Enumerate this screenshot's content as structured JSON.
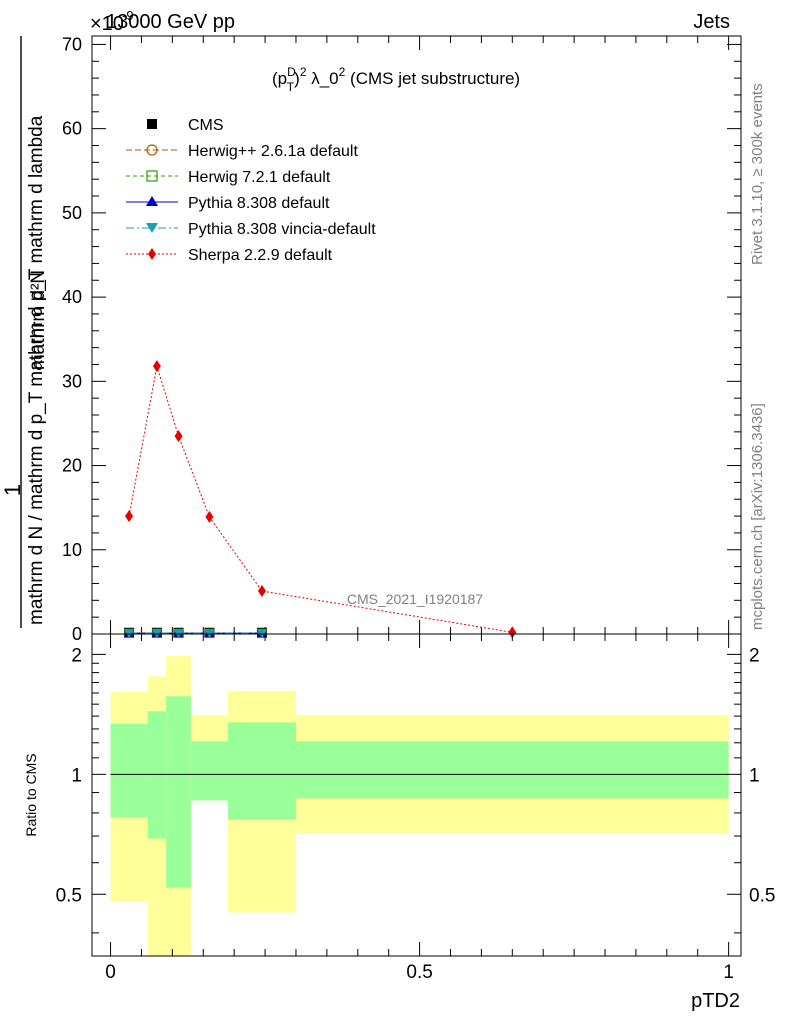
{
  "header": {
    "left_label": "13000 GeV pp",
    "exponent_label": "×10",
    "exponent_power": "-9",
    "right_label": "Jets"
  },
  "side_labels": {
    "rivet": "Rivet 3.1.10, ≥ 300k events",
    "mcplots": "mcplots.cern.ch [arXiv:1306.3436]"
  },
  "watermark": "CMS_2021_I1920187",
  "colors": {
    "cms": "#000000",
    "herwigpp": "#b35900",
    "herwig7": "#339900",
    "pythia": "#0000cc",
    "vincia": "#1a9fb0",
    "sherpa": "#e60000",
    "band_outer": "#ffff99",
    "band_inner": "#99ff99"
  },
  "chart_data": [
    {
      "id": "main",
      "type": "line",
      "title": "(p_T^D)^2 λ_0^2 (CMS jet substructure)",
      "title_parts": {
        "p": "(p",
        "sup1": "D",
        "sub1": "T",
        "close": ")",
        "sup2": "2",
        "lambda": " λ_0",
        "sup3": "2",
        "rest": " (CMS jet substructure)"
      },
      "ylabel_parts": {
        "numerator": "mathrm d²N",
        "denominator": "mathrm d N / mathrm d p_T mathrm d p_T mathrm d lambda",
        "one": "1"
      },
      "ylabel": "1 / (mathrm d N / mathrm d p_T) · mathrm d²N / (mathrm d p_T mathrm d lambda)",
      "xlim": [
        -0.03,
        1.02
      ],
      "ylim": [
        0,
        71
      ],
      "y_scale_note": "×10^-9",
      "yticks": [
        0,
        10,
        20,
        30,
        40,
        50,
        60,
        70
      ],
      "ytick_labels": [
        "0",
        "10",
        "20",
        "30",
        "40",
        "50",
        "60",
        "70"
      ],
      "legend_position": "top-left",
      "legend": [
        "CMS",
        "Herwig++ 2.6.1a default",
        "Herwig 7.2.1 default",
        "Pythia 8.308 default",
        "Pythia 8.308 vincia-default",
        "Sherpa 2.2.9 default"
      ],
      "series": [
        {
          "name": "CMS",
          "marker": "square",
          "x": [
            0.03,
            0.075,
            0.11,
            0.16,
            0.245
          ],
          "y": [
            0.15,
            0.15,
            0.15,
            0.15,
            0.15
          ]
        },
        {
          "name": "Herwig++ 2.6.1a default",
          "marker": "circle-open",
          "dash": "6,3",
          "x": [
            0.03,
            0.075,
            0.11,
            0.16,
            0.245
          ],
          "y": [
            0.1,
            0.1,
            0.1,
            0.1,
            0.1
          ]
        },
        {
          "name": "Herwig 7.2.1 default",
          "marker": "square-open",
          "dash": "4,3",
          "x": [
            0.03,
            0.075,
            0.11,
            0.16,
            0.245
          ],
          "y": [
            0.1,
            0.1,
            0.1,
            0.1,
            0.1
          ]
        },
        {
          "name": "Pythia 8.308 default",
          "marker": "triangle-up",
          "dash": "",
          "x": [
            0.03,
            0.075,
            0.11,
            0.16,
            0.245
          ],
          "y": [
            0.1,
            0.1,
            0.1,
            0.1,
            0.1
          ]
        },
        {
          "name": "Pythia 8.308 vincia-default",
          "marker": "triangle-down",
          "dash": "8,3,2,3",
          "x": [
            0.03,
            0.075,
            0.11,
            0.16,
            0.245
          ],
          "y": [
            0.1,
            0.1,
            0.1,
            0.1,
            0.1
          ]
        },
        {
          "name": "Sherpa 2.2.9 default",
          "marker": "diamond",
          "dash": "2,2",
          "x": [
            0.03,
            0.075,
            0.11,
            0.16,
            0.245,
            0.65
          ],
          "y": [
            14.0,
            31.8,
            23.5,
            13.9,
            5.1,
            0.2
          ]
        }
      ]
    },
    {
      "id": "ratio",
      "type": "area",
      "ylabel": "Ratio to CMS",
      "xlabel": "pTD2",
      "xlim": [
        -0.03,
        1.02
      ],
      "ylim": [
        0.35,
        2.25
      ],
      "yticks": [
        0.5,
        1,
        2
      ],
      "ytick_labels": [
        "0.5",
        "1",
        "2"
      ],
      "xticks": [
        0,
        0.5,
        1
      ],
      "xtick_labels": [
        "0",
        "0.5",
        "1"
      ],
      "reference_line": 1,
      "bands": [
        {
          "x0": 0.0,
          "x1": 0.06,
          "outer": [
            0.48,
            1.61
          ],
          "inner": [
            0.78,
            1.34
          ]
        },
        {
          "x0": 0.06,
          "x1": 0.09,
          "outer": [
            0.35,
            1.76
          ],
          "inner": [
            0.69,
            1.44
          ]
        },
        {
          "x0": 0.09,
          "x1": 0.13,
          "outer": [
            0.35,
            1.98
          ],
          "inner": [
            0.52,
            1.57
          ]
        },
        {
          "x0": 0.13,
          "x1": 0.19,
          "outer": [
            0.86,
            1.41
          ],
          "inner": [
            0.86,
            1.21
          ]
        },
        {
          "x0": 0.19,
          "x1": 0.3,
          "outer": [
            0.45,
            1.62
          ],
          "inner": [
            0.77,
            1.35
          ]
        },
        {
          "x0": 0.3,
          "x1": 1.0,
          "outer": [
            0.71,
            1.41
          ],
          "inner": [
            0.87,
            1.21
          ]
        }
      ]
    }
  ]
}
